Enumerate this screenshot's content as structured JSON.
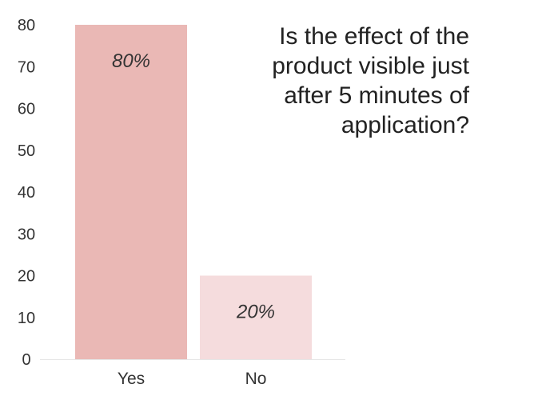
{
  "chart_data": {
    "type": "bar",
    "title": "Is the effect of the product visible just after 5 minutes of application?",
    "title_lines": [
      "Is the effect of the",
      "product visible just",
      "after 5 minutes of",
      "application?"
    ],
    "categories": [
      "Yes",
      "No"
    ],
    "values": [
      80,
      20
    ],
    "data_labels": [
      "80%",
      "20%"
    ],
    "colors": [
      "#eab8b5",
      "#f5dcdd"
    ],
    "ylim": [
      0,
      80
    ],
    "yticks": [
      0,
      10,
      20,
      30,
      40,
      50,
      60,
      70,
      80
    ],
    "xlabel": "",
    "ylabel": "",
    "grid": false,
    "legend": "none"
  }
}
